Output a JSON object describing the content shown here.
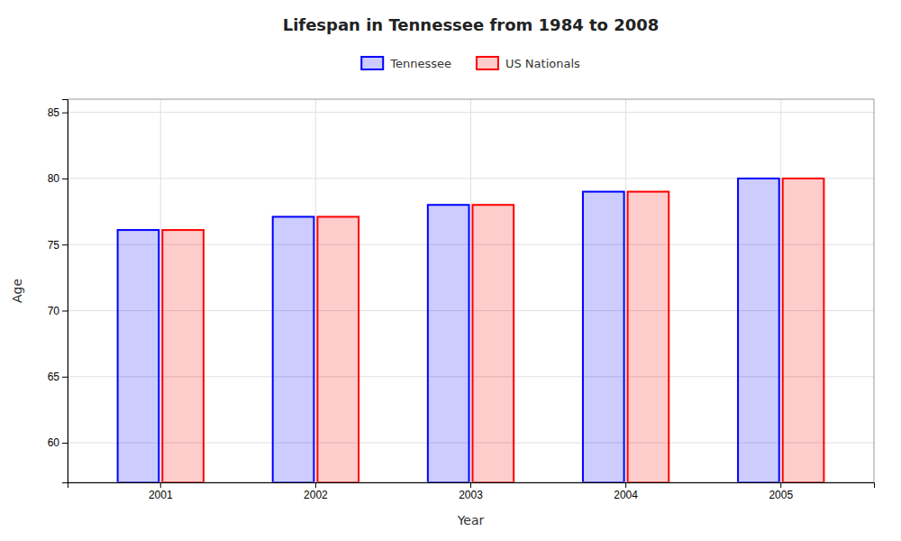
{
  "chart_data": {
    "type": "bar",
    "title": "Lifespan in Tennessee from 1984 to 2008",
    "x_label": "Year",
    "y_label": "Age",
    "categories": [
      "2001",
      "2002",
      "2003",
      "2004",
      "2005"
    ],
    "series": [
      {
        "name": "Tennessee",
        "color": "#0000ff",
        "values": [
          76.1,
          77.1,
          78.0,
          79.0,
          80.0
        ]
      },
      {
        "name": "US Nationals",
        "color": "#ff0000",
        "values": [
          76.1,
          77.1,
          78.0,
          79.0,
          80.0
        ]
      }
    ],
    "ylim": [
      57,
      86
    ],
    "yticks": [
      60,
      65,
      70,
      75,
      80,
      85
    ],
    "grid": true,
    "legend": "top"
  }
}
